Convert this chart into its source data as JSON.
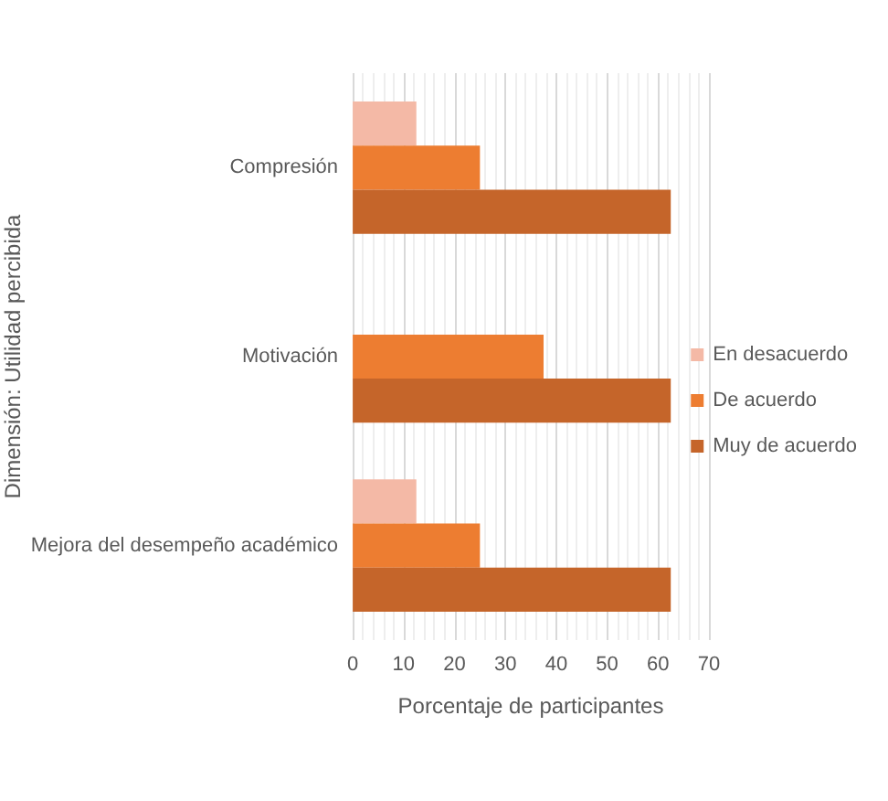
{
  "chart_data": {
    "type": "bar",
    "orientation": "horizontal",
    "xlabel": "Porcentaje de participantes",
    "ylabel": "Dimensión: Utilidad percibida",
    "categories": [
      "Compresión",
      "Motivación",
      "Mejora del desempeño académico"
    ],
    "series": [
      {
        "name": "En desacuerdo",
        "color": "#f4b9a6",
        "values": [
          12.5,
          0,
          12.5
        ]
      },
      {
        "name": "De acuerdo",
        "color": "#ed7d31",
        "values": [
          25,
          37.5,
          25
        ]
      },
      {
        "name": "Muy de acuerdo",
        "color": "#c5652a",
        "values": [
          62.5,
          62.5,
          62.5
        ]
      }
    ],
    "xlim": [
      0,
      70
    ],
    "xticks": [
      0,
      10,
      20,
      30,
      40,
      50,
      60,
      70
    ],
    "grid": "x",
    "legend": "right"
  }
}
